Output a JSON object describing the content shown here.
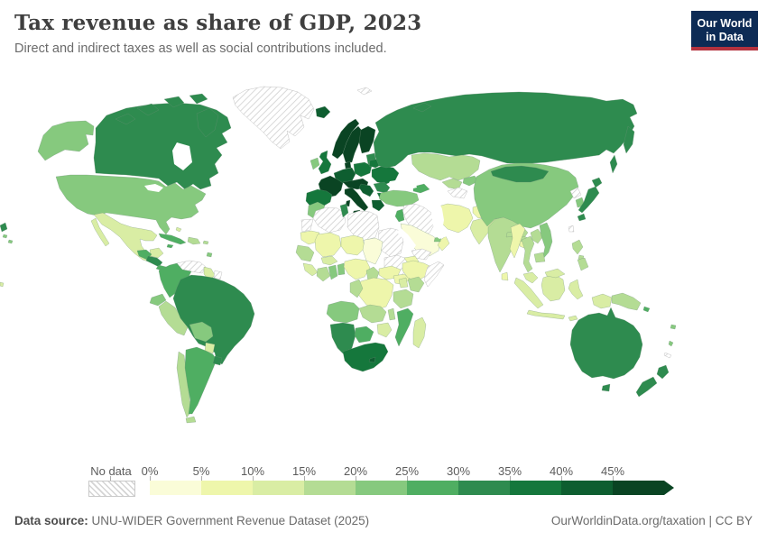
{
  "header": {
    "title": "Tax revenue as share of GDP, 2023",
    "subtitle": "Direct and indirect taxes as well as social contributions included."
  },
  "logo": {
    "line1": "Our World",
    "line2": "in Data",
    "bg_color": "#0d2b55",
    "accent_color": "#b4323e"
  },
  "legend": {
    "no_data_label": "No data",
    "tick_labels": [
      "0%",
      "5%",
      "10%",
      "15%",
      "20%",
      "25%",
      "30%",
      "35%",
      "40%",
      "45%"
    ],
    "colors": [
      "#fafcd8",
      "#eef6ab",
      "#d9eda4",
      "#b4dc94",
      "#86c97e",
      "#4fae62",
      "#2e8b4f",
      "#15773c",
      "#0e5e30",
      "#0a4423"
    ]
  },
  "footer": {
    "source_label": "Data source:",
    "source_text": " UNU-WIDER Government Revenue Dataset (2025)",
    "link_text": "OurWorldinData.org/taxation",
    "license_text": " | CC BY"
  },
  "chart_data": {
    "type": "heatmap",
    "subtype": "choropleth-world-map",
    "title": "Tax revenue as share of GDP, 2023",
    "subtitle": "Direct and indirect taxes as well as social contributions included.",
    "unit": "% of GDP",
    "legend_position": "bottom",
    "no_data_style": "diagonal-hatch",
    "bins": [
      "0-5%",
      "5-10%",
      "10-15%",
      "15-20%",
      "20-25%",
      "25-30%",
      "30-35%",
      "35-40%",
      "40-45%",
      "45%+"
    ],
    "countries": [
      {
        "id": "usa",
        "name": "United States",
        "bin": 4
      },
      {
        "id": "canada",
        "name": "Canada",
        "bin": 6
      },
      {
        "id": "greenland",
        "name": "Greenland",
        "bin": null
      },
      {
        "id": "mexico",
        "name": "Mexico",
        "bin": 2
      },
      {
        "id": "guatemala",
        "name": "Guatemala",
        "bin": 5
      },
      {
        "id": "honduras-nicaragua",
        "name": "Honduras & Nicaragua",
        "bin": 6
      },
      {
        "id": "costa-rica-panama",
        "name": "Costa Rica & Panama",
        "bin": 5
      },
      {
        "id": "cuba",
        "name": "Cuba",
        "bin": 5
      },
      {
        "id": "jamaica",
        "name": "Jamaica",
        "bin": 5
      },
      {
        "id": "hispaniola",
        "name": "Haiti & Dominican Republic",
        "bin": 3
      },
      {
        "id": "puerto-rico",
        "name": "Puerto Rico",
        "bin": 3
      },
      {
        "id": "bahamas",
        "name": "Bahamas",
        "bin": 2
      },
      {
        "id": "trinidad",
        "name": "Trinidad & Tobago",
        "bin": 4
      },
      {
        "id": "venezuela",
        "name": "Venezuela",
        "bin": null
      },
      {
        "id": "colombia",
        "name": "Colombia",
        "bin": 5
      },
      {
        "id": "guyana",
        "name": "Guyana",
        "bin": 2
      },
      {
        "id": "suriname",
        "name": "Suriname",
        "bin": null
      },
      {
        "id": "ecuador",
        "name": "Ecuador",
        "bin": 4
      },
      {
        "id": "peru",
        "name": "Peru",
        "bin": 3
      },
      {
        "id": "brazil",
        "name": "Brazil",
        "bin": 6
      },
      {
        "id": "bolivia",
        "name": "Bolivia",
        "bin": 4
      },
      {
        "id": "paraguay",
        "name": "Paraguay",
        "bin": 2
      },
      {
        "id": "chile",
        "name": "Chile",
        "bin": 3
      },
      {
        "id": "argentina",
        "name": "Argentina",
        "bin": 5
      },
      {
        "id": "uruguay",
        "name": "Uruguay",
        "bin": 6
      },
      {
        "id": "iceland",
        "name": "Iceland",
        "bin": 8
      },
      {
        "id": "ireland",
        "name": "Ireland",
        "bin": 4
      },
      {
        "id": "uk",
        "name": "United Kingdom",
        "bin": 7
      },
      {
        "id": "norway",
        "name": "Norway",
        "bin": 9
      },
      {
        "id": "sweden",
        "name": "Sweden",
        "bin": 9
      },
      {
        "id": "finland",
        "name": "Finland",
        "bin": 9
      },
      {
        "id": "denmark",
        "name": "Denmark",
        "bin": 9
      },
      {
        "id": "baltics",
        "name": "Baltic states",
        "bin": 6
      },
      {
        "id": "germany",
        "name": "Germany",
        "bin": 8
      },
      {
        "id": "poland",
        "name": "Poland",
        "bin": 7
      },
      {
        "id": "france",
        "name": "France",
        "bin": 9
      },
      {
        "id": "iberia",
        "name": "Spain & Portugal",
        "bin": 7
      },
      {
        "id": "central-europe",
        "name": "Austria & Central Europe",
        "bin": 9
      },
      {
        "id": "italy",
        "name": "Italy",
        "bin": 9
      },
      {
        "id": "belarus",
        "name": "Belarus",
        "bin": 7
      },
      {
        "id": "ukraine",
        "name": "Ukraine",
        "bin": 7
      },
      {
        "id": "romania",
        "name": "Romania",
        "bin": 6
      },
      {
        "id": "bulgaria",
        "name": "Bulgaria",
        "bin": 7
      },
      {
        "id": "balkans",
        "name": "Western Balkans",
        "bin": 8
      },
      {
        "id": "greece",
        "name": "Greece",
        "bin": 8
      },
      {
        "id": "russia",
        "name": "Russia",
        "bin": 6
      },
      {
        "id": "svalbard",
        "name": "Svalbard",
        "bin": null
      },
      {
        "id": "kazakhstan",
        "name": "Kazakhstan",
        "bin": 3
      },
      {
        "id": "uzbekistan",
        "name": "Uzbekistan",
        "bin": 3
      },
      {
        "id": "turkmenistan",
        "name": "Turkmenistan",
        "bin": null
      },
      {
        "id": "kyrgyz-tajik",
        "name": "Kyrgyzstan & Tajikistan",
        "bin": 4
      },
      {
        "id": "caucasus",
        "name": "Georgia & Azerbaijan",
        "bin": 5
      },
      {
        "id": "turkey",
        "name": "Turkey",
        "bin": 4
      },
      {
        "id": "syria-iraq",
        "name": "Syria & Iraq",
        "bin": null
      },
      {
        "id": "israel-jordan",
        "name": "Israel & Jordan",
        "bin": 5
      },
      {
        "id": "saudi-arabia",
        "name": "Saudi Arabia",
        "bin": 0
      },
      {
        "id": "yemen",
        "name": "Yemen",
        "bin": null
      },
      {
        "id": "oman",
        "name": "Oman",
        "bin": 1
      },
      {
        "id": "uae",
        "name": "United Arab Emirates",
        "bin": 4
      },
      {
        "id": "iran",
        "name": "Iran",
        "bin": 1
      },
      {
        "id": "afghanistan",
        "name": "Afghanistan",
        "bin": 1
      },
      {
        "id": "pakistan",
        "name": "Pakistan",
        "bin": 2
      },
      {
        "id": "india",
        "name": "India",
        "bin": 3
      },
      {
        "id": "nepal",
        "name": "Nepal",
        "bin": 3
      },
      {
        "id": "bangladesh",
        "name": "Bangladesh",
        "bin": 1
      },
      {
        "id": "sri-lanka",
        "name": "Sri Lanka",
        "bin": 1
      },
      {
        "id": "china",
        "name": "China",
        "bin": 4
      },
      {
        "id": "mongolia",
        "name": "Mongolia",
        "bin": 6
      },
      {
        "id": "north-korea",
        "name": "North Korea",
        "bin": null
      },
      {
        "id": "south-korea",
        "name": "South Korea",
        "bin": 4
      },
      {
        "id": "japan",
        "name": "Japan",
        "bin": 6
      },
      {
        "id": "taiwan",
        "name": "Taiwan",
        "bin": null
      },
      {
        "id": "myanmar",
        "name": "Myanmar",
        "bin": 1
      },
      {
        "id": "thailand",
        "name": "Thailand",
        "bin": 3
      },
      {
        "id": "laos",
        "name": "Laos",
        "bin": 3
      },
      {
        "id": "vietnam",
        "name": "Vietnam",
        "bin": 4
      },
      {
        "id": "cambodia",
        "name": "Cambodia",
        "bin": 3
      },
      {
        "id": "malaysia",
        "name": "Malaysia",
        "bin": 2
      },
      {
        "id": "indonesia",
        "name": "Indonesia",
        "bin": 2
      },
      {
        "id": "philippines",
        "name": "Philippines",
        "bin": 3
      },
      {
        "id": "papua-new-guinea",
        "name": "Papua New Guinea",
        "bin": 3
      },
      {
        "id": "timor",
        "name": "Timor",
        "bin": 2
      },
      {
        "id": "solomon-islands",
        "name": "Solomon Islands",
        "bin": 5
      },
      {
        "id": "fiji",
        "name": "Fiji",
        "bin": 4
      },
      {
        "id": "vanuatu",
        "name": "Vanuatu",
        "bin": 4
      },
      {
        "id": "new-caledonia",
        "name": "New Caledonia",
        "bin": null
      },
      {
        "id": "kiribati",
        "name": "Kiribati",
        "bin": 2
      },
      {
        "id": "morocco",
        "name": "Morocco",
        "bin": 4
      },
      {
        "id": "western-sahara",
        "name": "Western Sahara",
        "bin": null
      },
      {
        "id": "algeria",
        "name": "Algeria",
        "bin": null
      },
      {
        "id": "tunisia",
        "name": "Tunisia",
        "bin": 6
      },
      {
        "id": "libya",
        "name": "Libya",
        "bin": null
      },
      {
        "id": "egypt",
        "name": "Egypt",
        "bin": null
      },
      {
        "id": "mauritania",
        "name": "Mauritania",
        "bin": 1
      },
      {
        "id": "mali",
        "name": "Mali",
        "bin": 1
      },
      {
        "id": "niger",
        "name": "Niger",
        "bin": 1
      },
      {
        "id": "chad",
        "name": "Chad",
        "bin": 0
      },
      {
        "id": "sudan",
        "name": "Sudan",
        "bin": null
      },
      {
        "id": "senegal-guinea",
        "name": "Senegal & Guinea",
        "bin": 3
      },
      {
        "id": "sierra-liberia",
        "name": "Sierra Leone & Liberia",
        "bin": 2
      },
      {
        "id": "ivory-coast",
        "name": "Cote d'Ivoire",
        "bin": 3
      },
      {
        "id": "ghana",
        "name": "Ghana",
        "bin": 4
      },
      {
        "id": "togo-benin",
        "name": "Togo & Benin",
        "bin": 4
      },
      {
        "id": "burkina-faso",
        "name": "Burkina Faso",
        "bin": 2
      },
      {
        "id": "nigeria",
        "name": "Nigeria",
        "bin": 1
      },
      {
        "id": "cameroon",
        "name": "Cameroon",
        "bin": 3
      },
      {
        "id": "central-african-republic",
        "name": "Central African Republic",
        "bin": 1
      },
      {
        "id": "south-sudan",
        "name": "South Sudan",
        "bin": 1
      },
      {
        "id": "ethiopia",
        "name": "Ethiopia",
        "bin": 1
      },
      {
        "id": "eritrea",
        "name": "Eritrea",
        "bin": 1
      },
      {
        "id": "somalia",
        "name": "Somalia",
        "bin": null
      },
      {
        "id": "kenya",
        "name": "Kenya",
        "bin": 3
      },
      {
        "id": "uganda",
        "name": "Uganda",
        "bin": 2
      },
      {
        "id": "drc",
        "name": "Democratic Republic of Congo",
        "bin": 1
      },
      {
        "id": "congo-gabon",
        "name": "Congo & Gabon",
        "bin": 3
      },
      {
        "id": "tanzania",
        "name": "Tanzania",
        "bin": 3
      },
      {
        "id": "angola",
        "name": "Angola",
        "bin": 4
      },
      {
        "id": "zambia",
        "name": "Zambia",
        "bin": 3
      },
      {
        "id": "malawi",
        "name": "Malawi",
        "bin": 3
      },
      {
        "id": "mozambique",
        "name": "Mozambique",
        "bin": 5
      },
      {
        "id": "zimbabwe",
        "name": "Zimbabwe",
        "bin": 2
      },
      {
        "id": "namibia",
        "name": "Namibia",
        "bin": 6
      },
      {
        "id": "botswana",
        "name": "Botswana",
        "bin": 5
      },
      {
        "id": "south-africa",
        "name": "South Africa",
        "bin": 7
      },
      {
        "id": "lesotho",
        "name": "Lesotho",
        "bin": 8
      },
      {
        "id": "madagascar",
        "name": "Madagascar",
        "bin": 2
      },
      {
        "id": "australia",
        "name": "Australia",
        "bin": 6
      },
      {
        "id": "new-zealand",
        "name": "New Zealand",
        "bin": 6
      }
    ]
  }
}
